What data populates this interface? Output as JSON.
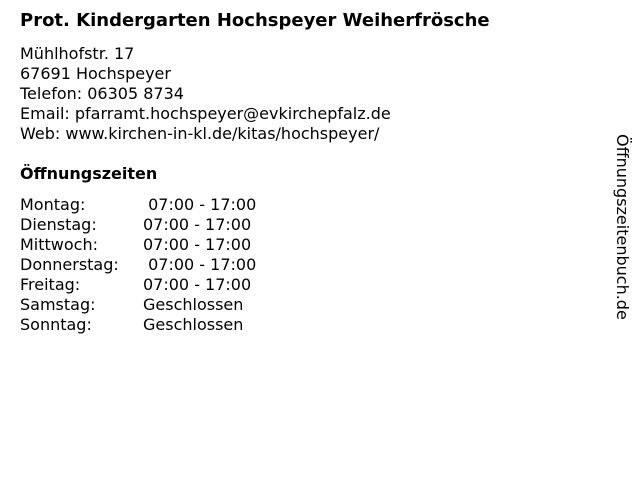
{
  "title": "Prot. Kindergarten Hochspeyer Weiherfrösche",
  "address": {
    "street": "Mühlhofstr. 17",
    "city": "67691 Hochspeyer",
    "phone": "Telefon: 06305 8734",
    "email": "Email: pfarramt.hochspeyer@evkirchepfalz.de",
    "web": "Web: www.kirchen-in-kl.de/kitas/hochspeyer/"
  },
  "hours_heading": "Öffnungszeiten",
  "hours": [
    {
      "day": "Montag:",
      "time": " 07:00 - 17:00"
    },
    {
      "day": "Dienstag:",
      "time": "07:00 - 17:00"
    },
    {
      "day": "Mittwoch:",
      "time": "07:00 - 17:00"
    },
    {
      "day": "Donnerstag:",
      "time": " 07:00 - 17:00"
    },
    {
      "day": "Freitag:",
      "time": "07:00 - 17:00"
    },
    {
      "day": "Samstag:",
      "time": "Geschlossen"
    },
    {
      "day": "Sonntag:",
      "time": "Geschlossen"
    }
  ],
  "watermark": "Öffnungszeitenbuch.de"
}
